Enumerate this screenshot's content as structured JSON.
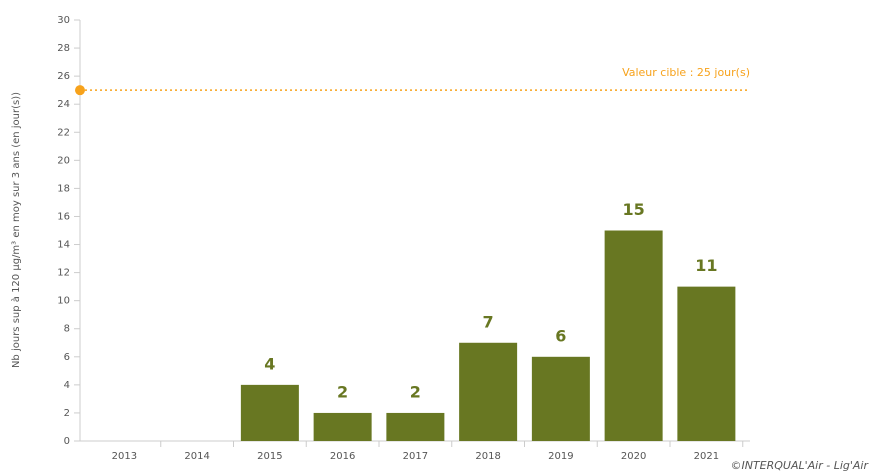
{
  "chart_data": {
    "type": "bar",
    "y_label": "Nb jours sup à 120 µg/m³ en moy sur 3 ans (en jour(s))",
    "categories": [
      "2013",
      "2014",
      "2015",
      "2016",
      "2017",
      "2018",
      "2019",
      "2020",
      "2021"
    ],
    "values": [
      null,
      null,
      4,
      2,
      2,
      7,
      6,
      15,
      11
    ],
    "color": "#687722",
    "ylim": [
      0,
      30
    ],
    "yticks": [
      0,
      2,
      4,
      6,
      8,
      10,
      12,
      14,
      16,
      18,
      20,
      22,
      24,
      26,
      28,
      30
    ],
    "target": {
      "value": 25,
      "label": "Valeur cible : 25 jour(s)",
      "color": "#f7a21b"
    },
    "credit": "©INTERQUAL'Air - Lig'Air"
  }
}
